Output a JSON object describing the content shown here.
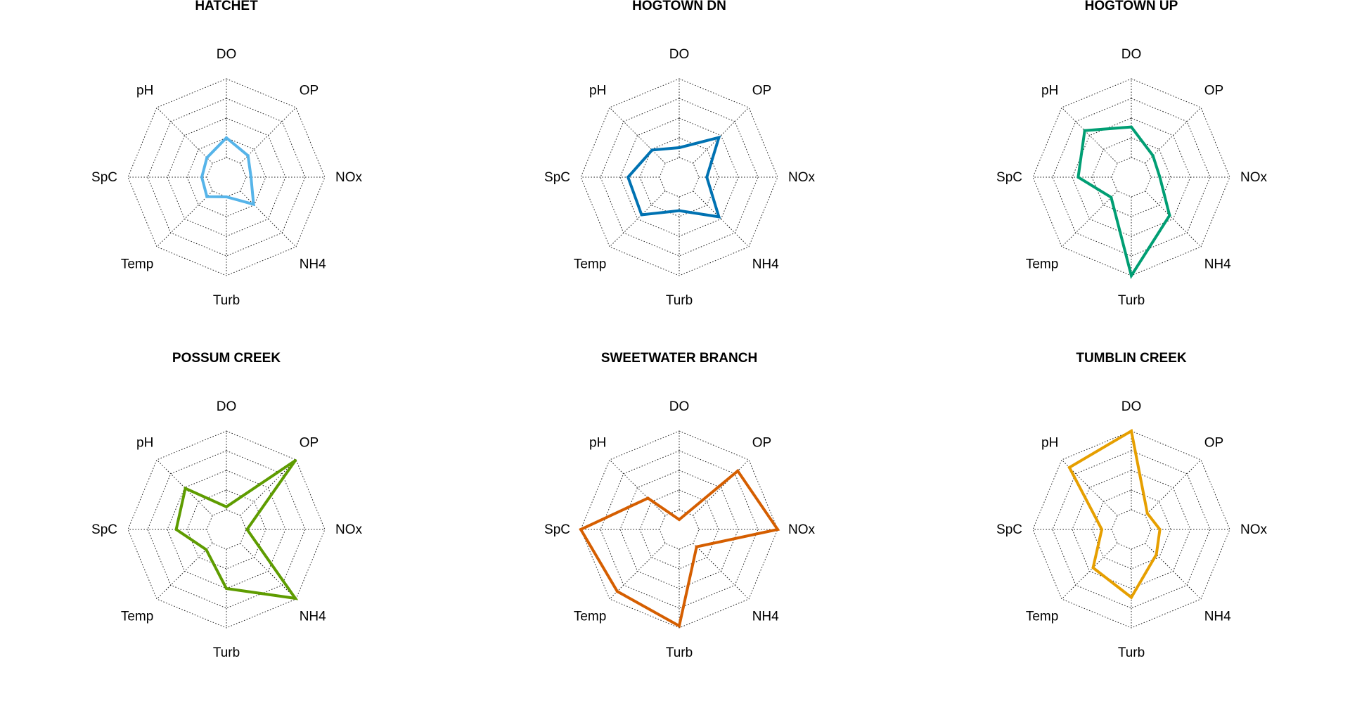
{
  "chart_data": [
    {
      "type": "radar",
      "title": "HATCHET",
      "axes": [
        "DO",
        "OP",
        "NOx",
        "NH4",
        "Turb",
        "Temp",
        "SpC",
        "pH"
      ],
      "rmax": 5,
      "ring_levels": 5,
      "series": [
        {
          "values": [
            2.0,
            1.55,
            1.25,
            1.95,
            1.0,
            1.4,
            1.25,
            1.4
          ],
          "color": "#56B4E9"
        }
      ]
    },
    {
      "type": "radar",
      "title": "HOGTOWN DN",
      "axes": [
        "DO",
        "OP",
        "NOx",
        "NH4",
        "Turb",
        "Temp",
        "SpC",
        "pH"
      ],
      "rmax": 5,
      "ring_levels": 5,
      "series": [
        {
          "values": [
            1.5,
            2.85,
            1.4,
            2.85,
            1.7,
            2.7,
            2.6,
            1.95
          ],
          "color": "#0072B2"
        }
      ]
    },
    {
      "type": "radar",
      "title": "HOGTOWN UP",
      "axes": [
        "DO",
        "OP",
        "NOx",
        "NH4",
        "Turb",
        "Temp",
        "SpC",
        "pH"
      ],
      "rmax": 5,
      "ring_levels": 5,
      "series": [
        {
          "values": [
            2.55,
            1.55,
            1.45,
            2.75,
            5.0,
            1.45,
            2.7,
            3.35
          ],
          "color": "#009E73"
        }
      ]
    },
    {
      "type": "radar",
      "title": "POSSUM CREEK",
      "axes": [
        "DO",
        "OP",
        "NOx",
        "NH4",
        "Turb",
        "Temp",
        "SpC",
        "pH"
      ],
      "rmax": 5,
      "ring_levels": 5,
      "series": [
        {
          "values": [
            1.15,
            4.95,
            1.05,
            4.95,
            3.0,
            1.45,
            2.55,
            2.95
          ],
          "color": "#5E9C00"
        }
      ]
    },
    {
      "type": "radar",
      "title": "SWEETWATER BRANCH",
      "axes": [
        "DO",
        "OP",
        "NOx",
        "NH4",
        "Turb",
        "Temp",
        "SpC",
        "pH"
      ],
      "rmax": 5,
      "ring_levels": 5,
      "series": [
        {
          "values": [
            0.5,
            4.2,
            5.0,
            1.25,
            4.9,
            4.45,
            5.0,
            2.25
          ],
          "color": "#D55E00"
        }
      ]
    },
    {
      "type": "radar",
      "title": "TUMBLIN CREEK",
      "axes": [
        "DO",
        "OP",
        "NOx",
        "NH4",
        "Turb",
        "Temp",
        "SpC",
        "pH"
      ],
      "rmax": 5,
      "ring_levels": 5,
      "series": [
        {
          "values": [
            5.0,
            1.15,
            1.45,
            1.8,
            3.45,
            2.75,
            1.5,
            4.45
          ],
          "color": "#E69F00"
        }
      ]
    }
  ]
}
